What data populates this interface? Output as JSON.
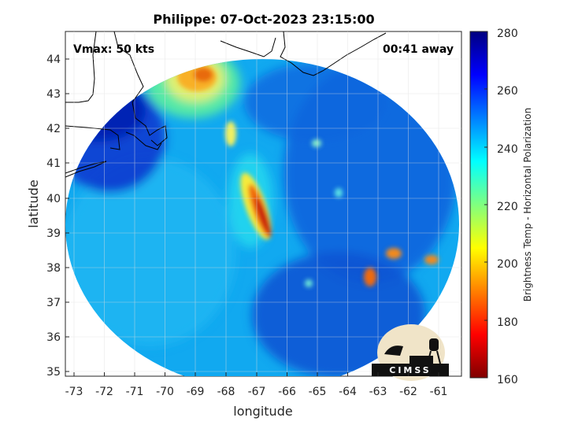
{
  "title": "Philippe: 07-Oct-2023 23:15:00",
  "xlabel": "longitude",
  "ylabel": "latitude",
  "annotations": {
    "vmax": "Vmax: 50 kts",
    "time_away": "00:41 away"
  },
  "colorbar": {
    "label": "Brightness Temp - Horizontal Polarization",
    "ticks": [
      "280",
      "260",
      "240",
      "220",
      "200",
      "180",
      "160"
    ],
    "range": [
      160,
      280
    ],
    "colormap": "jet"
  },
  "axes": {
    "xlim": [
      -73.3,
      -60.3
    ],
    "ylim": [
      34.8,
      44.8
    ],
    "xticks": [
      "-73",
      "-72",
      "-71",
      "-70",
      "-69",
      "-68",
      "-67",
      "-66",
      "-65",
      "-64",
      "-63",
      "-62",
      "-61"
    ],
    "yticks": [
      "44",
      "43",
      "42",
      "41",
      "40",
      "39",
      "38",
      "37",
      "36",
      "35"
    ],
    "grid": true
  },
  "logo": {
    "text": "CIMSS"
  },
  "chart_data": {
    "type": "heatmap",
    "title": "Philippe: 07-Oct-2023 23:15:00",
    "xlabel": "longitude",
    "ylabel": "latitude",
    "xlim": [
      -73.3,
      -60.3
    ],
    "ylim": [
      34.8,
      44.8
    ],
    "clim": [
      160,
      280
    ],
    "background_value": 250,
    "features": [
      {
        "name": "cold band core",
        "lon": -66.9,
        "lat": 39.7,
        "value": 175
      },
      {
        "name": "band upper",
        "lon": -67.3,
        "lat": 40.5,
        "value": 200
      },
      {
        "name": "band north",
        "lon": -67.8,
        "lat": 41.8,
        "value": 225
      },
      {
        "name": "gulf of maine cluster",
        "lon": -68.8,
        "lat": 43.4,
        "value": 195
      },
      {
        "name": "east cell 1",
        "lon": -63.2,
        "lat": 37.7,
        "value": 190
      },
      {
        "name": "east cell 2",
        "lon": -62.5,
        "lat": 38.4,
        "value": 200
      },
      {
        "name": "east cell 3",
        "lon": -61.0,
        "lat": 38.2,
        "value": 195
      },
      {
        "name": "warm land northwest",
        "lon": -72.0,
        "lat": 42.0,
        "value": 268
      }
    ]
  }
}
